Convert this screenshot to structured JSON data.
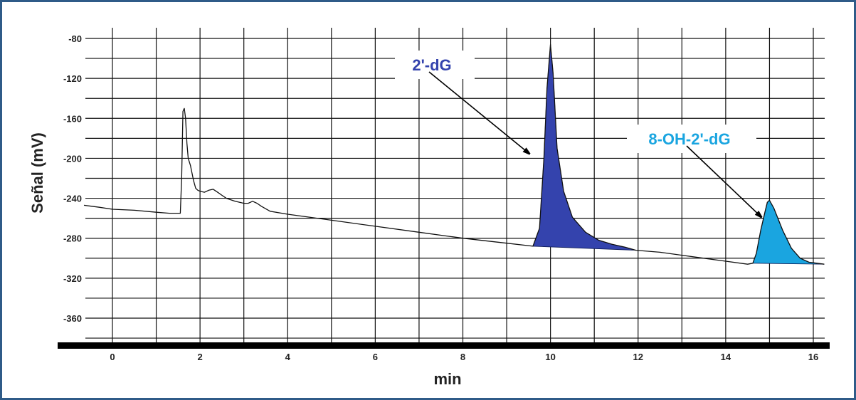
{
  "chart_data": {
    "type": "line",
    "title": "",
    "xlabel": "min",
    "ylabel": "Señal (mV)",
    "xlim": [
      -0.65,
      16.25
    ],
    "ylim": [
      -384,
      -69
    ],
    "x_ticks": [
      0,
      2,
      4,
      6,
      8,
      10,
      12,
      14,
      16
    ],
    "y_ticks": [
      -80,
      -120,
      -160,
      -200,
      -240,
      -280,
      -320,
      -360
    ],
    "grid": true,
    "series": [
      {
        "x": [
          -0.65,
          -0.3,
          0,
          0.5,
          1.0,
          1.3,
          1.55,
          1.58,
          1.61,
          1.64,
          1.67,
          1.7,
          1.73,
          1.78,
          1.85,
          1.9,
          1.95,
          2.0,
          2.1,
          2.2,
          2.3,
          2.4,
          2.5,
          2.6,
          2.8,
          3.0,
          3.1,
          3.2,
          3.3,
          3.4,
          3.6,
          4.0,
          5.0,
          6.0,
          7.0,
          8.0,
          9.0,
          9.6,
          9.75,
          9.85,
          9.92,
          10.0,
          10.06,
          10.15,
          10.3,
          10.5,
          10.8,
          11.1,
          11.4,
          11.7,
          11.95,
          12.5,
          13.0,
          13.5,
          14.0,
          14.5,
          14.62,
          14.7,
          14.8,
          14.9,
          14.95,
          15.0,
          15.1,
          15.3,
          15.5,
          15.7,
          15.9,
          16.25
        ],
        "y": [
          -247,
          -249,
          -251,
          -252,
          -254,
          -255,
          -255,
          -220,
          -153,
          -150,
          -160,
          -185,
          -200,
          -207,
          -222,
          -230,
          -232,
          -233,
          -234,
          -232,
          -231,
          -234,
          -237,
          -240,
          -243,
          -245,
          -245,
          -243,
          -245,
          -248,
          -253,
          -256,
          -262,
          -268,
          -274,
          -280,
          -285,
          -288,
          -270,
          -200,
          -130,
          -86,
          -115,
          -190,
          -233,
          -259,
          -274,
          -282,
          -286,
          -289,
          -292,
          -294,
          -297,
          -300,
          -303,
          -306,
          -305,
          -295,
          -272,
          -253,
          -244,
          -242,
          -250,
          -272,
          -290,
          -300,
          -304,
          -306
        ]
      }
    ],
    "peaks": [
      {
        "label": "2'-dG",
        "x_start": 9.6,
        "x_apex": 10.0,
        "x_end": 11.95,
        "y_apex": -86,
        "color": "#3443ad"
      },
      {
        "label": "8-OH-2'-dG",
        "x_start": 14.62,
        "x_apex": 14.98,
        "x_end": 16.25,
        "y_apex": -242,
        "color": "#1aa5e0"
      }
    ]
  }
}
